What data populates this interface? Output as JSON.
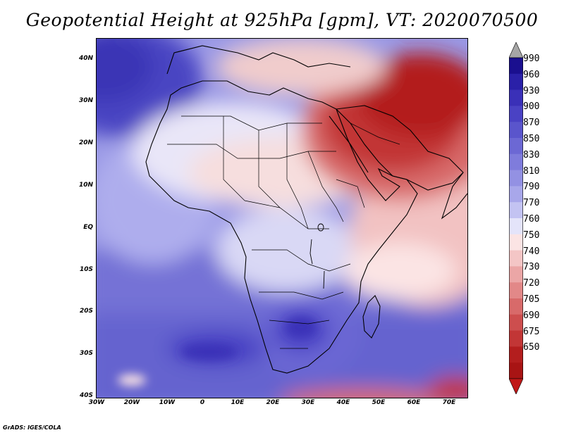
{
  "title": "Geopotential Height at 925hPa [gpm], VT: 2020070500",
  "credit": "GrADS: IGES/COLA",
  "map": {
    "projection": "lat-lon",
    "lon_range": [
      -30,
      75
    ],
    "lat_range": [
      -40,
      45
    ],
    "lon_ticks": [
      "30W",
      "20W",
      "10W",
      "0",
      "10E",
      "20E",
      "30E",
      "40E",
      "50E",
      "60E",
      "70E"
    ],
    "lat_ticks": [
      "40N",
      "30N",
      "20N",
      "10N",
      "EQ",
      "10S",
      "20S",
      "30S",
      "40S"
    ],
    "field": "geopotential height",
    "level": "925hPa",
    "units": "gpm"
  },
  "colorbar": {
    "labels": [
      "990",
      "960",
      "930",
      "900",
      "870",
      "850",
      "830",
      "810",
      "790",
      "770",
      "760",
      "750",
      "740",
      "730",
      "720",
      "705",
      "690",
      "675",
      "650"
    ],
    "colors": [
      "#1a0f8f",
      "#2a20a8",
      "#3a30b8",
      "#4a42c4",
      "#5a55cc",
      "#6c68d4",
      "#7f7cdc",
      "#9391e3",
      "#a8a7ea",
      "#c3c3f2",
      "#e4e4fa",
      "#fbe4e4",
      "#f4c6c6",
      "#eba6a6",
      "#e28888",
      "#d86a6a",
      "#cd4e4e",
      "#c23636",
      "#b31e1e",
      "#a81414"
    ],
    "over_color": "#a6a6a6",
    "under_color": "#c01818"
  }
}
